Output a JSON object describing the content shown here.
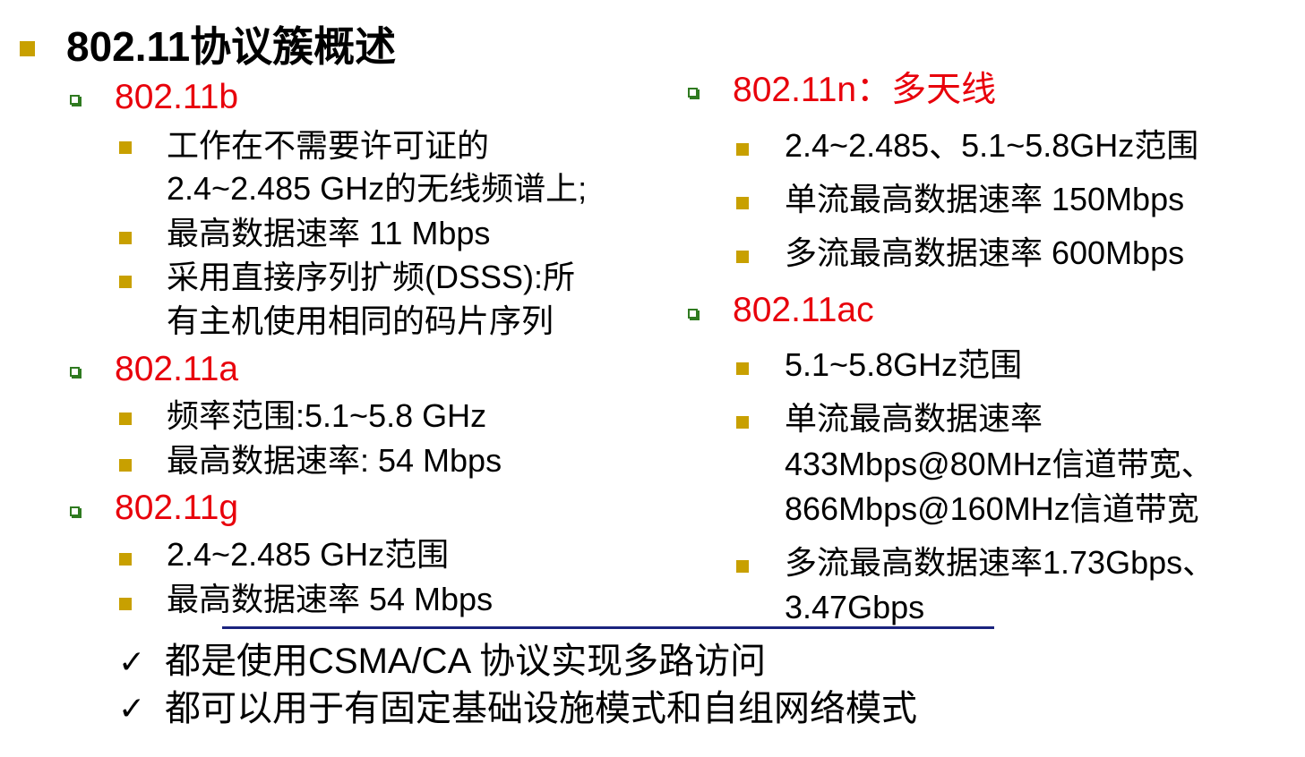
{
  "colors": {
    "sub_heading": "#e8000b",
    "main_bullet": "#c8a000",
    "sub_bullet": "#2f7a20",
    "divider": "#1a237e",
    "text": "#000000"
  },
  "title": "802.11协议簇概述",
  "left": {
    "b": {
      "heading": "802.11b",
      "items": [
        [
          "工作在不需要许可证的",
          "2.4~2.485 GHz的无线频谱上;"
        ],
        [
          "最高数据速率 11 Mbps"
        ],
        [
          "采用直接序列扩频(DSSS):所",
          "有主机使用相同的码片序列"
        ]
      ]
    },
    "a": {
      "heading": "802.11a",
      "items": [
        [
          "频率范围:5.1~5.8 GHz"
        ],
        [
          "最高数据速率: 54 Mbps"
        ]
      ]
    },
    "g": {
      "heading": "802.11g",
      "items": [
        [
          "2.4~2.485 GHz范围"
        ],
        [
          "最高数据速率 54 Mbps"
        ]
      ]
    }
  },
  "right": {
    "n": {
      "heading": "802.11n：多天线",
      "items": [
        [
          "2.4~2.485、5.1~5.8GHz范围"
        ],
        [
          "单流最高数据速率 150Mbps"
        ],
        [
          "多流最高数据速率 600Mbps"
        ]
      ]
    },
    "ac": {
      "heading": "802.11ac",
      "items": [
        [
          "5.1~5.8GHz范围"
        ],
        [
          "单流最高数据速率",
          "433Mbps@80MHz信道带宽、",
          "866Mbps@160MHz信道带宽"
        ],
        [
          "多流最高数据速率1.73Gbps、",
          "3.47Gbps"
        ]
      ]
    }
  },
  "notes": [
    "都是使用CSMA/CA 协议实现多路访问",
    "都可以用于有固定基础设施模式和自组网络模式"
  ],
  "check_symbol": "✓"
}
